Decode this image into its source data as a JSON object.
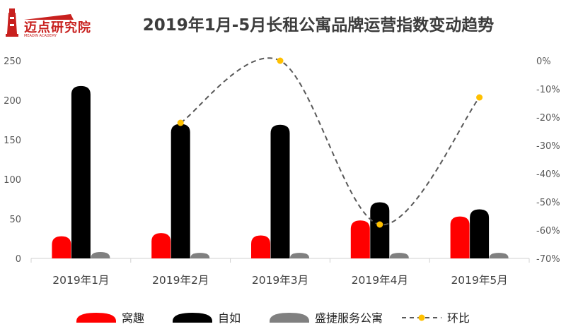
{
  "brand": {
    "name": "迈点研究院",
    "tagline": "MEADIN ACADEMY",
    "accent": "#c8201e"
  },
  "chart_data": {
    "type": "bar",
    "title": "2019年1月-5月长租公寓品牌运营指数变动趋势",
    "categories": [
      "2019年1月",
      "2019年2月",
      "2019年3月",
      "2019年4月",
      "2019年5月"
    ],
    "series": [
      {
        "name": "窝趣",
        "type": "bar",
        "axis": "left",
        "color": "#ff0000",
        "values": [
          28,
          32,
          29,
          48,
          53
        ]
      },
      {
        "name": "自如",
        "type": "bar",
        "axis": "left",
        "color": "#000000",
        "values": [
          218,
          170,
          169,
          71,
          62
        ]
      },
      {
        "name": "盛捷服务公寓",
        "type": "bar",
        "axis": "left",
        "color": "#808080",
        "values": [
          8,
          7,
          7,
          7,
          7
        ]
      },
      {
        "name": "环比",
        "type": "line",
        "axis": "right",
        "color": "#ffc000",
        "line_color": "#595959",
        "line_style": "dashed",
        "values": [
          null,
          -22,
          0,
          -58,
          -13
        ]
      }
    ],
    "y_left": {
      "min": 0,
      "max": 250,
      "step": 50,
      "ticks": [
        "0",
        "50",
        "100",
        "150",
        "200",
        "250"
      ]
    },
    "y_right": {
      "min": -70,
      "max": 0,
      "step": 10,
      "ticks": [
        "-70%",
        "-60%",
        "-50%",
        "-40%",
        "-30%",
        "-20%",
        "-10%",
        "0%"
      ]
    },
    "grid": false,
    "legend_position": "bottom"
  }
}
